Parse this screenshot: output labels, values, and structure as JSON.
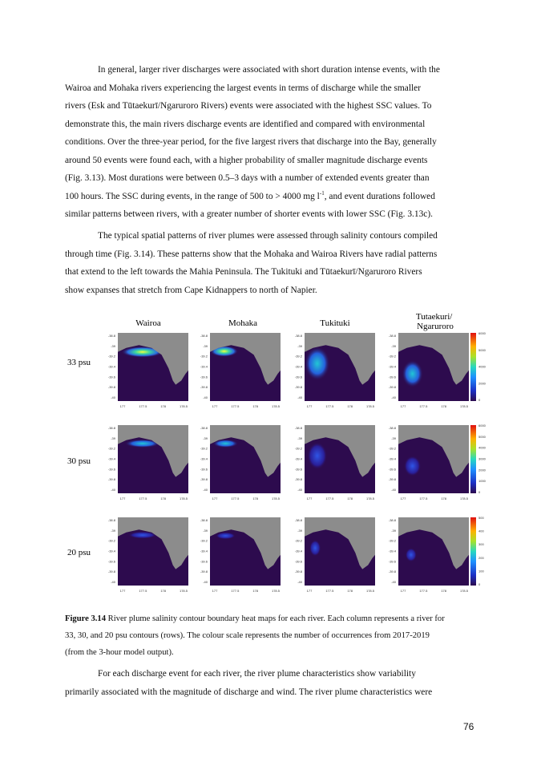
{
  "paragraphs": {
    "p1": [
      "In general, larger river discharges were associated with short duration intense events, with the",
      "Wairoa and Mohaka rivers experiencing the largest events in terms of discharge while the smaller",
      "rivers (Esk and Tūtaekurī/Ngaruroro Rivers) events were associated with the highest SSC values. To",
      "demonstrate this, the main rivers discharge events are identified and compared with environmental",
      "conditions. Over the three-year period, for the five largest rivers that discharge into the Bay, generally",
      "around 50 events were found each, with a higher probability of smaller magnitude discharge events",
      "(Fig. 3.13). Most durations were between 0.5–3 days with a number of extended events greater than",
      "100 hours. The SSC during events, in the range of 500 to > 4000 mg l-1, and event durations followed",
      "similar patterns between rivers, with a greater number of shorter events with lower SSC (Fig. 3.13c)."
    ],
    "p2": [
      "The typical spatial patterns of river plumes were assessed through salinity contours compiled",
      "through time (Fig. 3.14). These patterns show that the Mohaka and Wairoa Rivers have radial patterns",
      "that extend to the left towards the Mahia Peninsula. The Tukituki and Tūtaekurī/Ngaruroro Rivers",
      "show expanses that stretch from Cape Kidnappers to north of Napier."
    ],
    "p4": [
      "For each discharge event for each river, the river plume characteristics show variability",
      "primarily associated with the magnitude of discharge and wind. The river plume characteristics were"
    ]
  },
  "caption": {
    "label": "Figure 3.14",
    "line1": " River plume salinity contour boundary heat maps for each river. Each column represents a river for",
    "line2": "33, 30, and 20 psu contours (rows). The colour scale represents the number of occurrences from 2017-2019",
    "line3": "(from the 3-hour model output)."
  },
  "page_number": "76",
  "figure": {
    "columns": [
      "Wairoa",
      "Mohaka",
      "Tukituki",
      "Tutaekuri/\nNgaruroro"
    ],
    "rows": [
      "33 psu",
      "30 psu",
      "20 psu"
    ],
    "x_ticks": [
      "177",
      "177.5",
      "178",
      "178.5"
    ],
    "y_ticks": [
      "-38.8",
      "-39",
      "-39.2",
      "-39.4",
      "-39.6",
      "-39.8",
      "-40"
    ],
    "colorbars": [
      [
        "6000",
        "5000",
        "4000",
        "2000",
        "0"
      ],
      [
        "6000",
        "5000",
        "4000",
        "3000",
        "2000",
        "1000",
        "0"
      ],
      [
        "500",
        "400",
        "300",
        "200",
        "100",
        "0"
      ]
    ],
    "colors": {
      "background_sea": "#2d0b4e",
      "land": "#8c8c8c"
    }
  }
}
